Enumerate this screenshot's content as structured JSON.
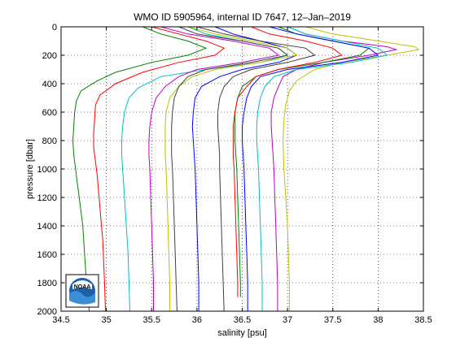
{
  "chart_data": {
    "type": "line",
    "title": "WMO ID 5905964, internal ID 7647, 12–Jan–2019",
    "xlabel": "salinity [psu]",
    "ylabel": "pressure [dbar]",
    "xlim": [
      34.5,
      38.5
    ],
    "ylim": [
      2000,
      0
    ],
    "y_reversed": true,
    "grid": true,
    "xticks": [
      34.5,
      35,
      35.5,
      36,
      36.5,
      37,
      37.5,
      38,
      38.5
    ],
    "xtick_labels": [
      "34.5",
      "35",
      "35.5",
      "36",
      "36.5",
      "37",
      "37.5",
      "38",
      "38.5"
    ],
    "yticks": [
      0,
      200,
      400,
      600,
      800,
      1000,
      1200,
      1400,
      1600,
      1800,
      2000
    ],
    "ytick_labels": [
      "0",
      "200",
      "400",
      "600",
      "800",
      "1000",
      "1200",
      "1400",
      "1600",
      "1800",
      "2000"
    ],
    "series": [
      {
        "color": "#008000",
        "points": [
          [
            35.4,
            0
          ],
          [
            35.6,
            50
          ],
          [
            35.9,
            100
          ],
          [
            36.1,
            150
          ],
          [
            35.9,
            200
          ],
          [
            35.5,
            250
          ],
          [
            35.1,
            320
          ],
          [
            34.9,
            380
          ],
          [
            34.72,
            450
          ],
          [
            34.67,
            520
          ],
          [
            34.65,
            600
          ],
          [
            34.64,
            700
          ],
          [
            34.63,
            800
          ],
          [
            34.64,
            900
          ],
          [
            34.66,
            1000
          ],
          [
            34.68,
            1100
          ],
          [
            34.7,
            1200
          ],
          [
            34.72,
            1300
          ],
          [
            34.74,
            1400
          ],
          [
            34.75,
            1500
          ],
          [
            34.76,
            1600
          ],
          [
            34.77,
            1700
          ],
          [
            34.78,
            1800
          ],
          [
            34.8,
            1900
          ],
          [
            34.81,
            2000
          ]
        ]
      },
      {
        "color": "#ff0000",
        "points": [
          [
            35.5,
            0
          ],
          [
            35.8,
            50
          ],
          [
            36.1,
            100
          ],
          [
            36.3,
            150
          ],
          [
            36.2,
            200
          ],
          [
            35.8,
            250
          ],
          [
            35.4,
            320
          ],
          [
            35.1,
            400
          ],
          [
            34.93,
            480
          ],
          [
            34.88,
            550
          ],
          [
            34.87,
            650
          ],
          [
            34.86,
            750
          ],
          [
            34.86,
            850
          ],
          [
            34.88,
            950
          ],
          [
            34.9,
            1050
          ],
          [
            34.92,
            1200
          ],
          [
            34.94,
            1350
          ],
          [
            34.96,
            1500
          ],
          [
            34.97,
            1650
          ],
          [
            34.98,
            1800
          ],
          [
            34.99,
            2000
          ]
        ]
      },
      {
        "color": "#0000ff",
        "points": [
          [
            36.2,
            0
          ],
          [
            36.4,
            50
          ],
          [
            36.7,
            100
          ],
          [
            37.0,
            150
          ],
          [
            37.1,
            200
          ],
          [
            36.9,
            250
          ],
          [
            36.5,
            300
          ],
          [
            36.25,
            350
          ],
          [
            36.05,
            420
          ],
          [
            35.98,
            500
          ],
          [
            35.96,
            600
          ],
          [
            35.95,
            700
          ],
          [
            35.96,
            800
          ],
          [
            35.97,
            900
          ],
          [
            35.98,
            1000
          ],
          [
            35.99,
            1200
          ],
          [
            36.0,
            1400
          ],
          [
            36.01,
            1600
          ],
          [
            36.02,
            1800
          ],
          [
            36.02,
            2000
          ]
        ]
      },
      {
        "color": "#00bfbf",
        "points": [
          [
            35.9,
            0
          ],
          [
            36.1,
            50
          ],
          [
            36.5,
            100
          ],
          [
            36.9,
            150
          ],
          [
            37.0,
            200
          ],
          [
            36.7,
            250
          ],
          [
            36.1,
            300
          ],
          [
            35.6,
            350
          ],
          [
            35.35,
            430
          ],
          [
            35.25,
            500
          ],
          [
            35.2,
            600
          ],
          [
            35.18,
            700
          ],
          [
            35.17,
            800
          ],
          [
            35.17,
            900
          ],
          [
            35.18,
            1000
          ],
          [
            35.2,
            1200
          ],
          [
            35.22,
            1400
          ],
          [
            35.24,
            1600
          ],
          [
            35.25,
            1800
          ],
          [
            35.26,
            2000
          ]
        ]
      },
      {
        "color": "#bf00bf",
        "points": [
          [
            37.0,
            0
          ],
          [
            37.2,
            50
          ],
          [
            37.6,
            100
          ],
          [
            38.1,
            140
          ],
          [
            38.2,
            160
          ],
          [
            37.9,
            200
          ],
          [
            37.4,
            250
          ],
          [
            37.1,
            300
          ],
          [
            36.95,
            350
          ],
          [
            36.9,
            420
          ],
          [
            36.85,
            500
          ],
          [
            36.82,
            600
          ],
          [
            36.82,
            700
          ],
          [
            36.83,
            800
          ],
          [
            36.84,
            900
          ],
          [
            36.85,
            1000
          ],
          [
            36.86,
            1200
          ],
          [
            36.87,
            1400
          ],
          [
            36.88,
            1600
          ],
          [
            36.89,
            1800
          ],
          [
            36.89,
            2000
          ]
        ]
      },
      {
        "color": "#bfbf00",
        "points": [
          [
            37.2,
            0
          ],
          [
            37.5,
            50
          ],
          [
            38.0,
            100
          ],
          [
            38.4,
            140
          ],
          [
            38.45,
            160
          ],
          [
            38.1,
            200
          ],
          [
            37.6,
            250
          ],
          [
            37.3,
            300
          ],
          [
            37.1,
            380
          ],
          [
            37.02,
            450
          ],
          [
            36.98,
            550
          ],
          [
            36.96,
            650
          ],
          [
            36.95,
            800
          ],
          [
            36.96,
            1000
          ],
          [
            36.98,
            1200
          ],
          [
            37.0,
            1400
          ],
          [
            37.01,
            1600
          ],
          [
            37.02,
            1800
          ],
          [
            37.02,
            2000
          ]
        ]
      },
      {
        "color": "#404040",
        "points": [
          [
            36.0,
            0
          ],
          [
            36.3,
            50
          ],
          [
            36.7,
            100
          ],
          [
            37.2,
            150
          ],
          [
            37.3,
            200
          ],
          [
            37.0,
            250
          ],
          [
            36.6,
            300
          ],
          [
            36.4,
            350
          ],
          [
            36.3,
            420
          ],
          [
            36.25,
            500
          ],
          [
            36.23,
            600
          ],
          [
            36.23,
            700
          ],
          [
            36.24,
            800
          ],
          [
            36.25,
            900
          ],
          [
            36.25,
            1000
          ],
          [
            36.26,
            1200
          ],
          [
            36.27,
            1400
          ],
          [
            36.28,
            1600
          ],
          [
            36.29,
            1800
          ],
          [
            36.3,
            2000
          ]
        ]
      },
      {
        "color": "#008000",
        "points": [
          [
            36.9,
            0
          ],
          [
            37.1,
            50
          ],
          [
            37.5,
            100
          ],
          [
            37.9,
            150
          ],
          [
            37.8,
            200
          ],
          [
            37.4,
            250
          ],
          [
            36.9,
            300
          ],
          [
            36.65,
            350
          ],
          [
            36.5,
            420
          ],
          [
            36.45,
            500
          ],
          [
            36.42,
            600
          ],
          [
            36.42,
            700
          ],
          [
            36.42,
            800
          ],
          [
            36.43,
            900
          ],
          [
            36.44,
            1000
          ],
          [
            36.45,
            1200
          ],
          [
            36.46,
            1400
          ],
          [
            36.47,
            1600
          ],
          [
            36.48,
            1800
          ],
          [
            36.48,
            1900
          ]
        ]
      },
      {
        "color": "#ff0000",
        "points": [
          [
            36.6,
            0
          ],
          [
            36.8,
            50
          ],
          [
            37.2,
            100
          ],
          [
            37.5,
            150
          ],
          [
            37.6,
            200
          ],
          [
            37.3,
            250
          ],
          [
            36.9,
            300
          ],
          [
            36.65,
            350
          ],
          [
            36.55,
            420
          ],
          [
            36.45,
            500
          ],
          [
            36.42,
            600
          ],
          [
            36.4,
            700
          ],
          [
            36.4,
            800
          ],
          [
            36.4,
            900
          ],
          [
            36.41,
            1000
          ],
          [
            36.42,
            1200
          ],
          [
            36.43,
            1400
          ],
          [
            36.44,
            1600
          ],
          [
            36.45,
            1800
          ],
          [
            36.45,
            1900
          ]
        ]
      },
      {
        "color": "#0000ff",
        "points": [
          [
            36.8,
            0
          ],
          [
            37.1,
            50
          ],
          [
            37.5,
            100
          ],
          [
            37.9,
            150
          ],
          [
            38.0,
            200
          ],
          [
            37.6,
            250
          ],
          [
            37.0,
            300
          ],
          [
            36.7,
            350
          ],
          [
            36.6,
            420
          ],
          [
            36.55,
            500
          ],
          [
            36.52,
            600
          ],
          [
            36.5,
            700
          ],
          [
            36.5,
            800
          ],
          [
            36.51,
            900
          ],
          [
            36.52,
            1000
          ],
          [
            36.53,
            1200
          ],
          [
            36.54,
            1400
          ],
          [
            36.55,
            1600
          ],
          [
            36.56,
            1800
          ],
          [
            36.56,
            2000
          ]
        ]
      },
      {
        "color": "#00bfbf",
        "points": [
          [
            37.0,
            0
          ],
          [
            37.2,
            50
          ],
          [
            37.6,
            100
          ],
          [
            38.0,
            150
          ],
          [
            38.1,
            200
          ],
          [
            37.7,
            250
          ],
          [
            37.1,
            300
          ],
          [
            36.85,
            350
          ],
          [
            36.75,
            420
          ],
          [
            36.7,
            500
          ],
          [
            36.67,
            600
          ],
          [
            36.66,
            700
          ],
          [
            36.66,
            800
          ],
          [
            36.67,
            900
          ],
          [
            36.68,
            1000
          ],
          [
            36.69,
            1200
          ],
          [
            36.7,
            1400
          ],
          [
            36.71,
            1600
          ],
          [
            36.72,
            1800
          ],
          [
            36.72,
            2000
          ]
        ]
      },
      {
        "color": "#bf00bf",
        "points": [
          [
            35.6,
            0
          ],
          [
            35.9,
            50
          ],
          [
            36.4,
            100
          ],
          [
            36.8,
            150
          ],
          [
            36.9,
            200
          ],
          [
            36.5,
            250
          ],
          [
            36.0,
            300
          ],
          [
            35.8,
            350
          ],
          [
            35.65,
            420
          ],
          [
            35.55,
            500
          ],
          [
            35.5,
            600
          ],
          [
            35.48,
            700
          ],
          [
            35.47,
            800
          ],
          [
            35.47,
            900
          ],
          [
            35.48,
            1000
          ],
          [
            35.49,
            1200
          ],
          [
            35.5,
            1400
          ],
          [
            35.51,
            1600
          ],
          [
            35.52,
            1800
          ],
          [
            35.52,
            2000
          ]
        ]
      },
      {
        "color": "#bfbf00",
        "points": [
          [
            35.9,
            0
          ],
          [
            36.2,
            50
          ],
          [
            36.6,
            100
          ],
          [
            37.0,
            150
          ],
          [
            37.1,
            200
          ],
          [
            36.7,
            250
          ],
          [
            36.2,
            300
          ],
          [
            35.95,
            350
          ],
          [
            35.8,
            420
          ],
          [
            35.7,
            500
          ],
          [
            35.66,
            600
          ],
          [
            35.65,
            700
          ],
          [
            35.65,
            800
          ],
          [
            35.65,
            900
          ],
          [
            35.66,
            1000
          ],
          [
            35.67,
            1200
          ],
          [
            35.68,
            1400
          ],
          [
            35.69,
            1600
          ],
          [
            35.7,
            1800
          ],
          [
            35.7,
            2000
          ]
        ]
      },
      {
        "color": "#404040",
        "points": [
          [
            35.8,
            0
          ],
          [
            36.0,
            50
          ],
          [
            36.5,
            100
          ],
          [
            36.9,
            150
          ],
          [
            37.0,
            200
          ],
          [
            36.6,
            250
          ],
          [
            36.1,
            300
          ],
          [
            35.9,
            350
          ],
          [
            35.8,
            420
          ],
          [
            35.75,
            500
          ],
          [
            35.73,
            600
          ],
          [
            35.72,
            700
          ],
          [
            35.72,
            800
          ],
          [
            35.72,
            900
          ],
          [
            35.73,
            1000
          ],
          [
            35.74,
            1200
          ],
          [
            35.75,
            1400
          ],
          [
            35.76,
            1600
          ],
          [
            35.77,
            1800
          ],
          [
            35.78,
            2000
          ]
        ]
      }
    ],
    "logo_text": "NOAA"
  }
}
